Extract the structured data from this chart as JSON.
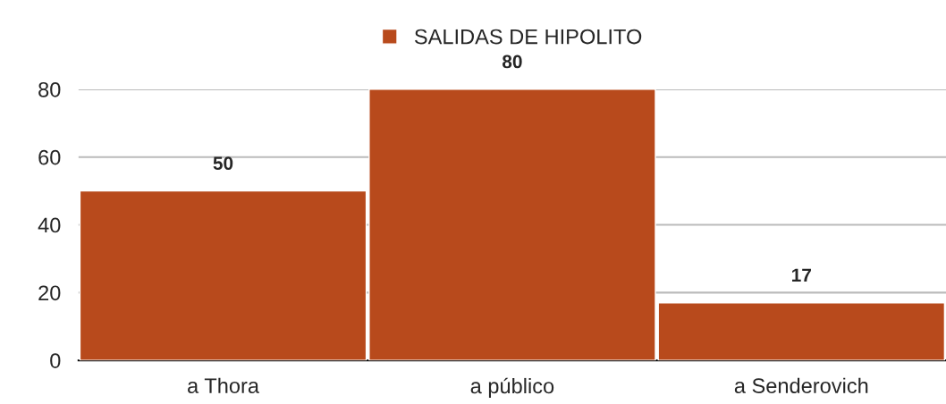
{
  "chart_data": {
    "type": "bar",
    "categories": [
      "a Thora",
      "a público",
      "a Senderovich"
    ],
    "series": [
      {
        "name": "SALIDAS DE HIPOLITO",
        "color": "#b84a1c",
        "values": [
          50,
          80,
          17
        ]
      }
    ],
    "ylim": [
      0,
      80
    ],
    "yticks": [
      0,
      20,
      40,
      60,
      80
    ],
    "grid": "y",
    "legend": "top",
    "data_labels": true
  }
}
